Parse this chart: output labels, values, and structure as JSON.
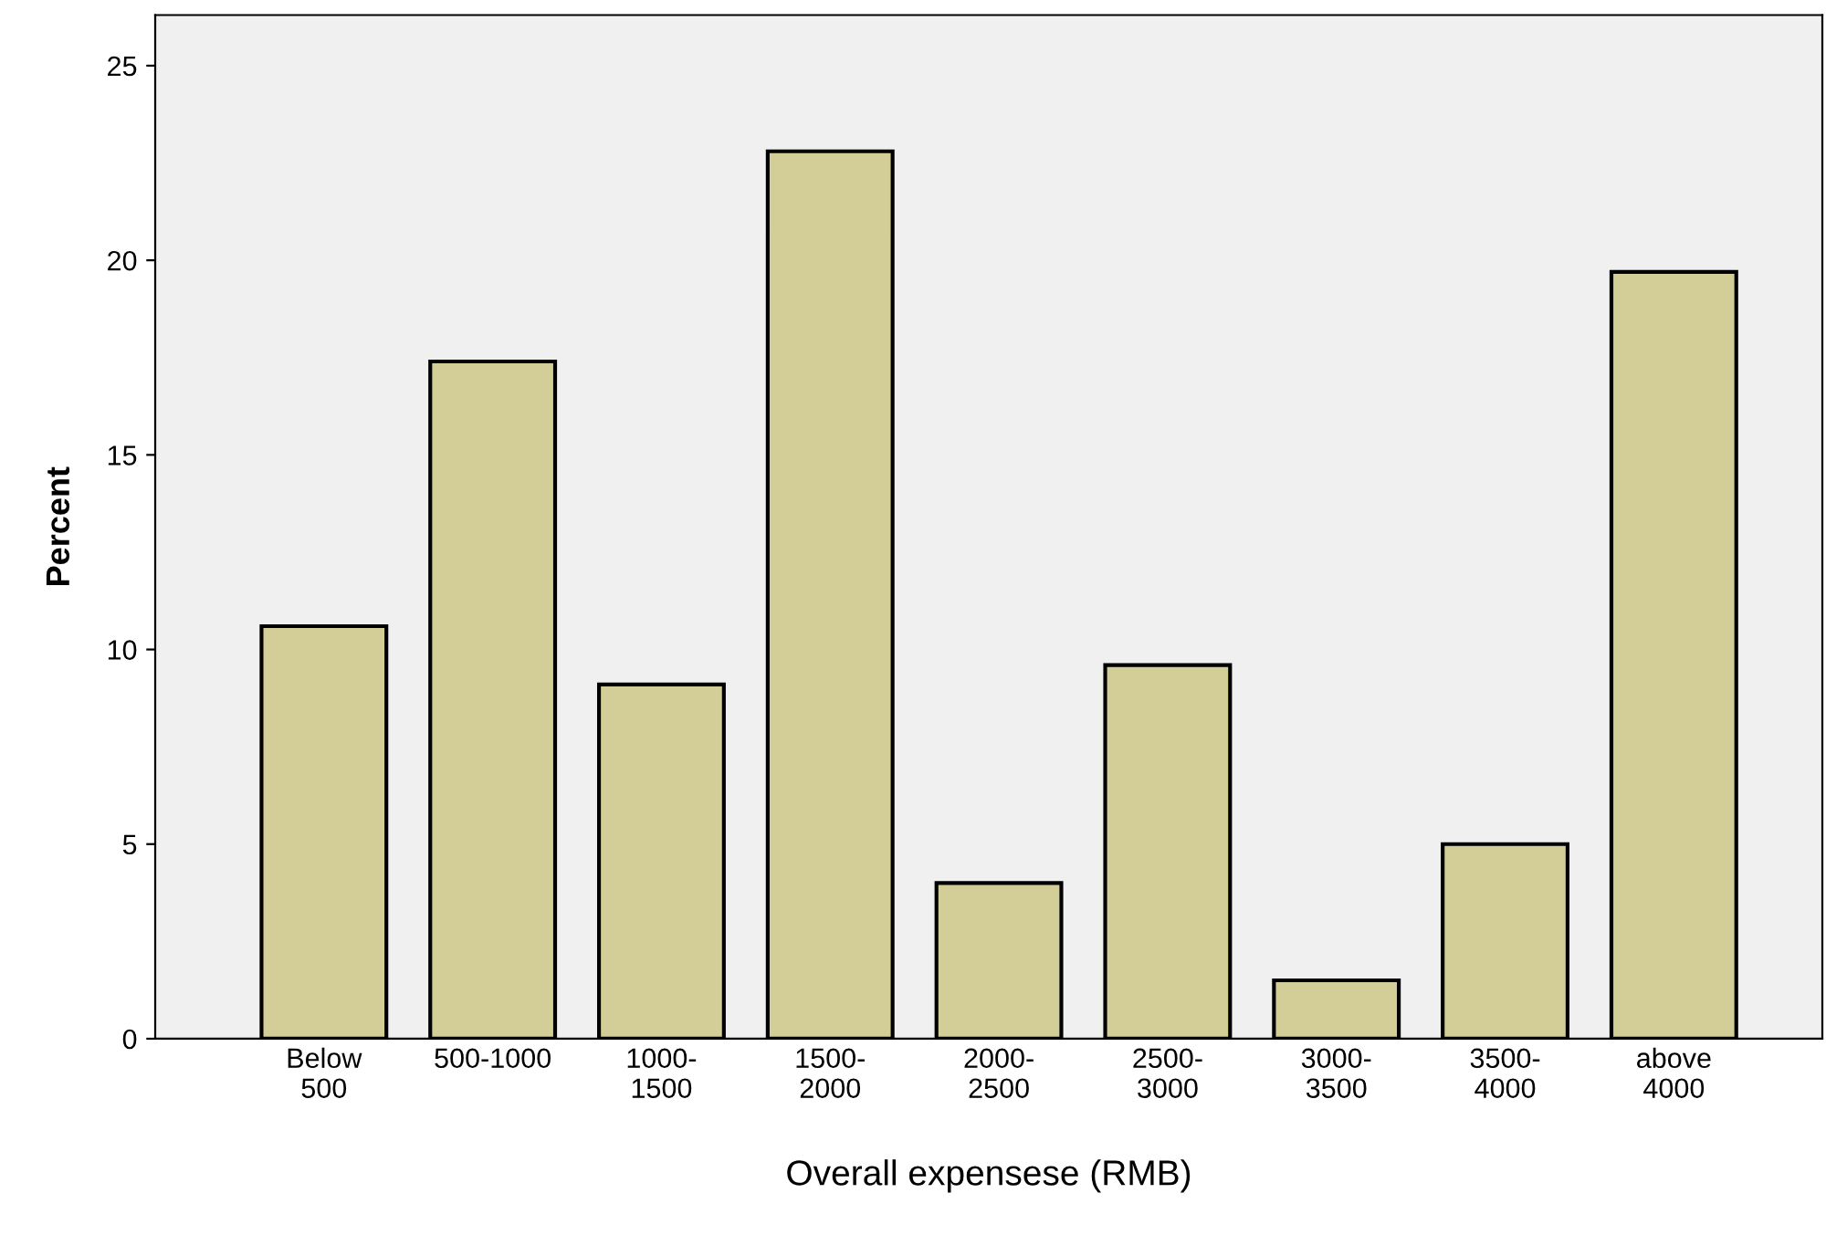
{
  "chart_data": {
    "type": "bar",
    "xlabel": "Overall expensese (RMB)",
    "ylabel": "Percent",
    "categories": [
      "Below\n500",
      "500-1000",
      "1000-\n1500",
      "1500-\n2000",
      "2000-\n2500",
      "2500-\n3000",
      "3000-\n3500",
      "3500-\n4000",
      "above\n4000"
    ],
    "values": [
      10.6,
      17.4,
      9.1,
      22.8,
      4.0,
      9.6,
      1.5,
      5.0,
      19.7
    ],
    "color": "#d3ce97",
    "ylim": [
      0,
      26.3
    ],
    "yticks": [
      0,
      5,
      10,
      15,
      20,
      25
    ],
    "grid": false,
    "legend": false
  }
}
